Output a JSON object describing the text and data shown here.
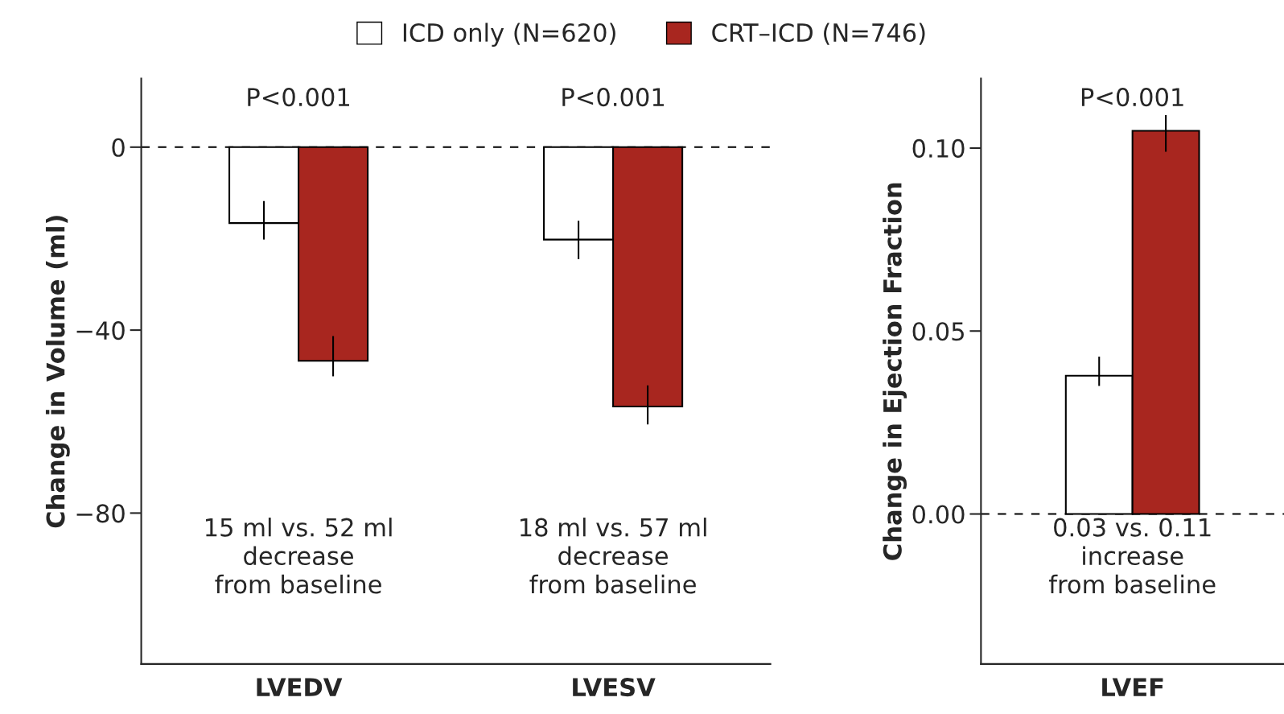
{
  "chart_data": [
    {
      "type": "bar",
      "categories": [
        "LVEDV",
        "LVESV"
      ],
      "ylabel": "Change in Volume (ml)",
      "ylim": [
        -113,
        15
      ],
      "yticks": [
        0,
        {
          "value": -40,
          "label": "−40"
        },
        {
          "value": -80,
          "label": "−80"
        }
      ],
      "legend": "top",
      "grid": false,
      "series": [
        {
          "name": "ICD only (N=620)",
          "color": "#ffffff",
          "values": [
            -16.6,
            -20.2
          ],
          "errors": [
            [
              -20.2,
              -11.8
            ],
            [
              -24.5,
              -16.1
            ]
          ]
        },
        {
          "name": "CRT–ICD (N=746)",
          "color": "#a8261f",
          "values": [
            -46.7,
            -56.7
          ],
          "errors": [
            [
              -50.1,
              -41.3
            ],
            [
              -60.6,
              -52.1
            ]
          ]
        }
      ],
      "ref_lines": [
        {
          "axis": "y",
          "value": 0,
          "line_style": "dashed",
          "color": "#000000"
        }
      ],
      "annotations": [
        "P<0.001",
        "P<0.001",
        "15 ml vs. 52 ml\ndecrease\nfrom baseline",
        "18 ml vs. 57 ml\ndecrease\nfrom baseline"
      ]
    },
    {
      "type": "bar",
      "categories": [
        "LVEF"
      ],
      "ylabel": "Change in Ejection Fraction",
      "ylim": [
        -0.041,
        0.119
      ],
      "yticks": [
        {
          "value": 0,
          "label": "0.00"
        },
        {
          "value": 0.05,
          "label": "0.05"
        },
        {
          "value": 0.1,
          "label": "0.10"
        }
      ],
      "grid": false,
      "series": [
        {
          "color": "#ffffff",
          "values": [
            0.0378
          ],
          "errors": [
            [
              0.035,
              0.043
            ]
          ]
        },
        {
          "color": "#a8261f",
          "values": [
            0.1047
          ],
          "errors": [
            [
              0.099,
              0.109
            ]
          ]
        }
      ],
      "ref_lines": [
        {
          "axis": "y",
          "value": 0,
          "line_style": "dashed",
          "color": "#000000"
        }
      ],
      "annotations": [
        "P<0.001",
        "0.03 vs. 0.11\nincrease\nfrom baseline"
      ]
    }
  ]
}
